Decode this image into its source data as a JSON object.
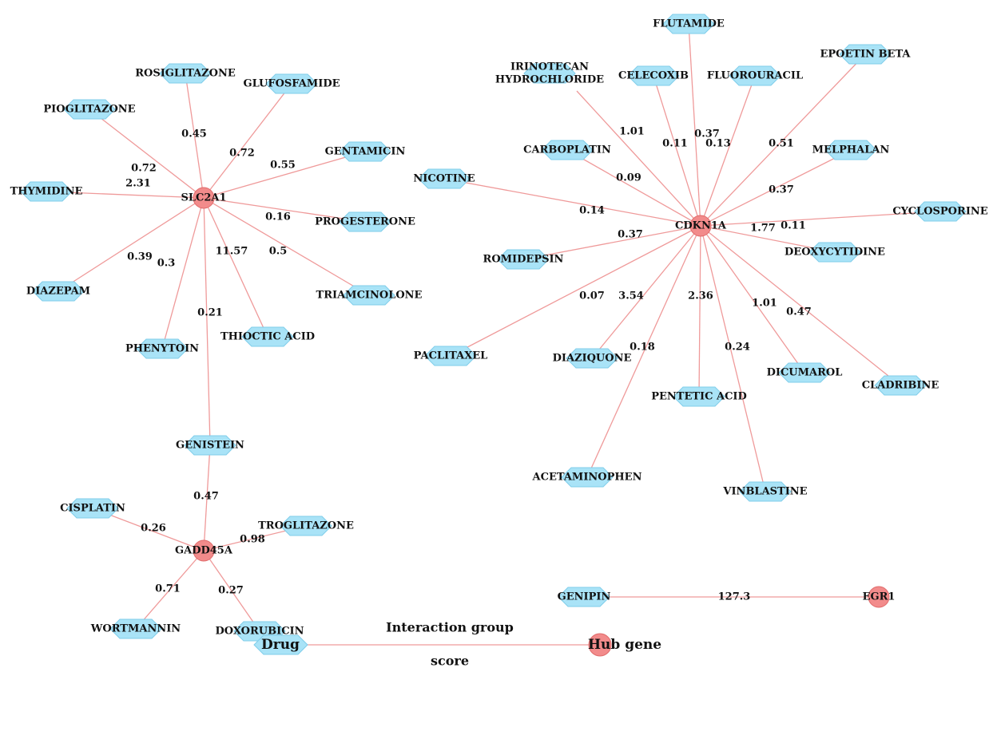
{
  "hubs": [
    {
      "id": "SLC2A1",
      "label": "SLC2A1"
    },
    {
      "id": "CDKN1A",
      "label": "CDKN1A"
    },
    {
      "id": "GADD45A",
      "label": "GADD45A"
    },
    {
      "id": "EGR1",
      "label": "EGR1"
    }
  ],
  "drugs": [
    {
      "id": "ROSIGLITAZONE",
      "label": "ROSIGLITAZONE"
    },
    {
      "id": "GLUFOSFAMIDE",
      "label": "GLUFOSFAMIDE"
    },
    {
      "id": "PIOGLITAZONE",
      "label": "PIOGLITAZONE"
    },
    {
      "id": "GENTAMICIN",
      "label": "GENTAMICIN"
    },
    {
      "id": "THYMIDINE",
      "label": "THYMIDINE"
    },
    {
      "id": "PROGESTERONE",
      "label": "PROGESTERONE"
    },
    {
      "id": "DIAZEPAM",
      "label": "DIAZEPAM"
    },
    {
      "id": "TRIAMCINOLONE",
      "label": "TRIAMCINOLONE"
    },
    {
      "id": "PHENYTOIN",
      "label": "PHENYTOIN"
    },
    {
      "id": "THIOCTIC_ACID",
      "label": "THIOCTIC ACID"
    },
    {
      "id": "GENISTEIN",
      "label": "GENISTEIN"
    },
    {
      "id": "CISPLATIN",
      "label": "CISPLATIN"
    },
    {
      "id": "TROGLITAZONE",
      "label": "TROGLITAZONE"
    },
    {
      "id": "WORTMANNIN",
      "label": "WORTMANNIN"
    },
    {
      "id": "DOXORUBICIN",
      "label": "DOXORUBICIN"
    },
    {
      "id": "FLUTAMIDE",
      "label": "FLUTAMIDE"
    },
    {
      "id": "IRINOTECAN",
      "label": "IRINOTECAN\nHYDROCHLORIDE"
    },
    {
      "id": "CELECOXIB",
      "label": "CELECOXIB"
    },
    {
      "id": "FLUOROURACIL",
      "label": "FLUOROURACIL"
    },
    {
      "id": "EPOETIN_BETA",
      "label": "EPOETIN BETA"
    },
    {
      "id": "CARBOPLATIN",
      "label": "CARBOPLATIN"
    },
    {
      "id": "MELPHALAN",
      "label": "MELPHALAN"
    },
    {
      "id": "NICOTINE",
      "label": "NICOTINE"
    },
    {
      "id": "CYCLOSPORINE",
      "label": "CYCLOSPORINE"
    },
    {
      "id": "DEOXYCYTIDINE",
      "label": "DEOXYCYTIDINE"
    },
    {
      "id": "ROMIDEPSIN",
      "label": "ROMIDEPSIN"
    },
    {
      "id": "PACLITAXEL",
      "label": "PACLITAXEL"
    },
    {
      "id": "DIAZIQUONE",
      "label": "DIAZIQUONE"
    },
    {
      "id": "DICUMAROL",
      "label": "DICUMAROL"
    },
    {
      "id": "CLADRIBINE",
      "label": "CLADRIBINE"
    },
    {
      "id": "PENTETIC_ACID",
      "label": "PENTETIC ACID"
    },
    {
      "id": "ACETAMINOPHEN",
      "label": "ACETAMINOPHEN"
    },
    {
      "id": "VINBLASTINE",
      "label": "VINBLASTINE"
    },
    {
      "id": "GENIPIN",
      "label": "GENIPIN"
    }
  ],
  "edges": [
    {
      "from": "SLC2A1",
      "to": "ROSIGLITAZONE",
      "score": "0.45"
    },
    {
      "from": "SLC2A1",
      "to": "GLUFOSFAMIDE",
      "score": "0.72"
    },
    {
      "from": "SLC2A1",
      "to": "PIOGLITAZONE",
      "score": "0.72"
    },
    {
      "from": "SLC2A1",
      "to": "GENTAMICIN",
      "score": "0.55"
    },
    {
      "from": "SLC2A1",
      "to": "THYMIDINE",
      "score": "2.31"
    },
    {
      "from": "SLC2A1",
      "to": "PROGESTERONE",
      "score": "0.16"
    },
    {
      "from": "SLC2A1",
      "to": "DIAZEPAM",
      "score": "0.39"
    },
    {
      "from": "SLC2A1",
      "to": "TRIAMCINOLONE",
      "score": "0.5"
    },
    {
      "from": "SLC2A1",
      "to": "PHENYTOIN",
      "score": "0.3"
    },
    {
      "from": "SLC2A1",
      "to": "THIOCTIC_ACID",
      "score": "11.57"
    },
    {
      "from": "SLC2A1",
      "to": "GENISTEIN",
      "score": "0.21"
    },
    {
      "from": "GADD45A",
      "to": "GENISTEIN",
      "score": "0.47"
    },
    {
      "from": "GADD45A",
      "to": "CISPLATIN",
      "score": "0.26"
    },
    {
      "from": "GADD45A",
      "to": "TROGLITAZONE",
      "score": "0.98"
    },
    {
      "from": "GADD45A",
      "to": "WORTMANNIN",
      "score": "0.71"
    },
    {
      "from": "GADD45A",
      "to": "DOXORUBICIN",
      "score": "0.27"
    },
    {
      "from": "CDKN1A",
      "to": "FLUTAMIDE",
      "score": "0.37"
    },
    {
      "from": "CDKN1A",
      "to": "IRINOTECAN",
      "score": "1.01"
    },
    {
      "from": "CDKN1A",
      "to": "CELECOXIB",
      "score": "0.11"
    },
    {
      "from": "CDKN1A",
      "to": "FLUOROURACIL",
      "score": "0.13"
    },
    {
      "from": "CDKN1A",
      "to": "EPOETIN_BETA",
      "score": "0.51"
    },
    {
      "from": "CDKN1A",
      "to": "CARBOPLATIN",
      "score": "0.09"
    },
    {
      "from": "CDKN1A",
      "to": "MELPHALAN",
      "score": "0.37"
    },
    {
      "from": "CDKN1A",
      "to": "NICOTINE",
      "score": "0.14"
    },
    {
      "from": "CDKN1A",
      "to": "CYCLOSPORINE",
      "score": "0.11"
    },
    {
      "from": "CDKN1A",
      "to": "DEOXYCYTIDINE",
      "score": "1.77"
    },
    {
      "from": "CDKN1A",
      "to": "ROMIDEPSIN",
      "score": "0.37"
    },
    {
      "from": "CDKN1A",
      "to": "PACLITAXEL",
      "score": "0.07"
    },
    {
      "from": "CDKN1A",
      "to": "DIAZIQUONE",
      "score": "3.54"
    },
    {
      "from": "CDKN1A",
      "to": "DICUMAROL",
      "score": "1.01"
    },
    {
      "from": "CDKN1A",
      "to": "CLADRIBINE",
      "score": "0.47"
    },
    {
      "from": "CDKN1A",
      "to": "PENTETIC_ACID",
      "score": "2.36"
    },
    {
      "from": "CDKN1A",
      "to": "ACETAMINOPHEN",
      "score": "0.18"
    },
    {
      "from": "CDKN1A",
      "to": "VINBLASTINE",
      "score": "0.24"
    },
    {
      "from": "EGR1",
      "to": "GENIPIN",
      "score": "127.3"
    }
  ],
  "legend": {
    "drug_label": "Drug",
    "hub_label": "Hub gene",
    "edge_label_line1": "Interaction group",
    "edge_label_line2": "score"
  },
  "colors": {
    "drug_fill": "#a9e3f7",
    "hub_fill": "#f28b8b",
    "edge": "#ef9a9a"
  }
}
